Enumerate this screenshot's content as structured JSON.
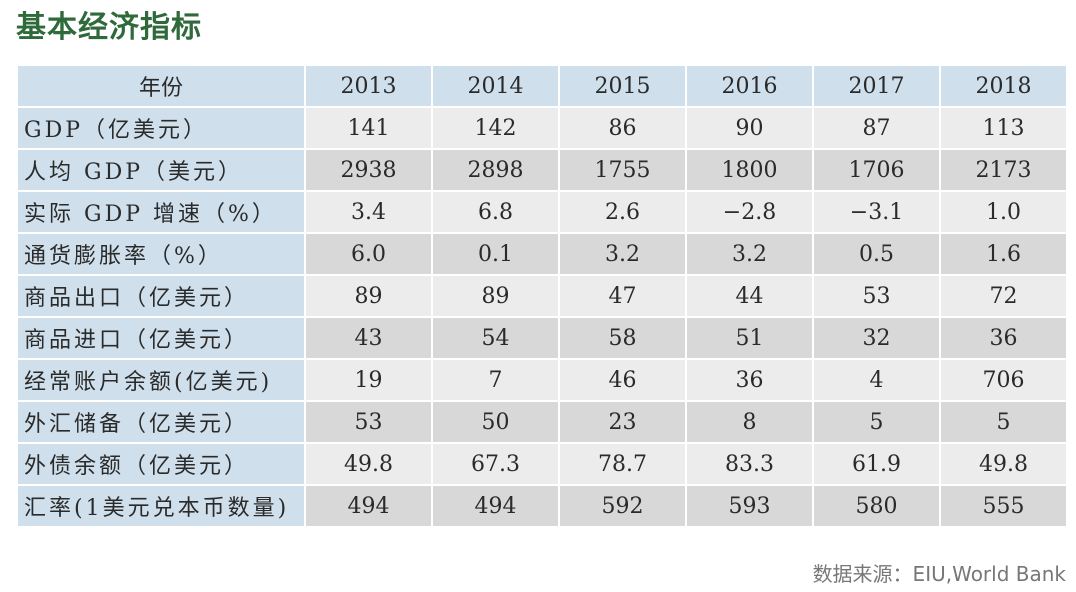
{
  "title": "基本经济指标",
  "table": {
    "header": [
      "年份",
      "2013",
      "2014",
      "2015",
      "2016",
      "2017",
      "2018"
    ],
    "rows": [
      {
        "label": "GDP（亿美元）",
        "values": [
          "141",
          "142",
          "86",
          "90",
          "87",
          "113"
        ]
      },
      {
        "label": "人均 GDP（美元）",
        "values": [
          "2938",
          "2898",
          "1755",
          "1800",
          "1706",
          "2173"
        ]
      },
      {
        "label": "实际 GDP 增速（%）",
        "values": [
          "3.4",
          "6.8",
          "2.6",
          "−2.8",
          "−3.1",
          "1.0"
        ]
      },
      {
        "label": "通货膨胀率（%）",
        "values": [
          "6.0",
          "0.1",
          "3.2",
          "3.2",
          "0.5",
          "1.6"
        ]
      },
      {
        "label": "商品出口（亿美元）",
        "values": [
          "89",
          "89",
          "47",
          "44",
          "53",
          "72"
        ]
      },
      {
        "label": "商品进口（亿美元）",
        "values": [
          "43",
          "54",
          "58",
          "51",
          "32",
          "36"
        ]
      },
      {
        "label": "经常账户余额(亿美元)",
        "values": [
          "19",
          "7",
          "46",
          "36",
          "4",
          "706"
        ]
      },
      {
        "label": "外汇储备（亿美元）",
        "values": [
          "53",
          "50",
          "23",
          "8",
          "5",
          "5"
        ]
      },
      {
        "label": "外债余额（亿美元）",
        "values": [
          "49.8",
          "67.3",
          "78.7",
          "83.3",
          "61.9",
          "49.8"
        ]
      },
      {
        "label": "汇率(1美元兑本币数量)",
        "values": [
          "494",
          "494",
          "592",
          "593",
          "580",
          "555"
        ]
      }
    ]
  },
  "source": "数据来源：EIU,World Bank",
  "colors": {
    "title": "#2f6a3a",
    "header_bg": "#cfe0ec",
    "row_light": "#ececec",
    "row_dark": "#d8d8d8",
    "source_text": "#777777"
  }
}
